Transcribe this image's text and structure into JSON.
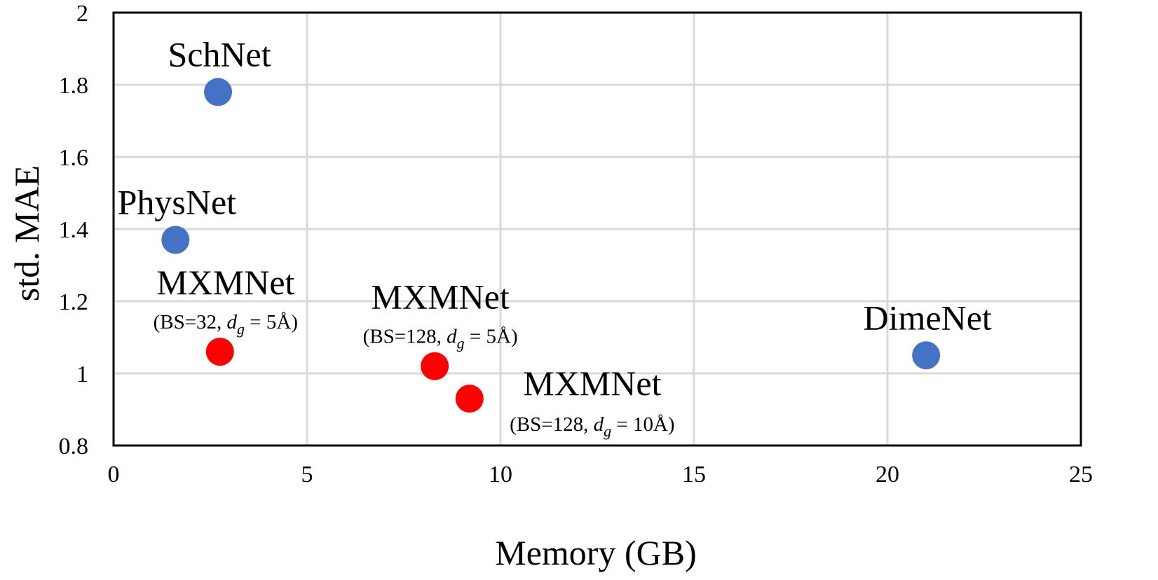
{
  "chart_data": {
    "type": "scatter",
    "xlabel": "Memory (GB)",
    "ylabel": "std. MAE",
    "xlim": [
      0,
      25
    ],
    "ylim": [
      0.8,
      2
    ],
    "xticks": [
      0,
      5,
      10,
      15,
      20,
      25
    ],
    "yticks": [
      0.8,
      1,
      1.2,
      1.4,
      1.6,
      1.8,
      2
    ],
    "xtick_labels": [
      "0",
      "5",
      "10",
      "15",
      "20",
      "25"
    ],
    "ytick_labels": [
      "0.8",
      "1",
      "1.2",
      "1.4",
      "1.6",
      "1.8",
      "2"
    ],
    "grid": true,
    "legend": "none",
    "colors": {
      "baseline": "#4472c4",
      "mxmnet": "#ff0000",
      "grid": "#d9d9d9",
      "frame": "#000000"
    },
    "points": [
      {
        "name": "SchNet",
        "x": 2.7,
        "y": 1.78,
        "group": "baseline",
        "label_position": "above"
      },
      {
        "name": "PhysNet",
        "x": 1.6,
        "y": 1.37,
        "group": "baseline",
        "label_position": "above"
      },
      {
        "name": "MXMNet",
        "x": 2.75,
        "y": 1.06,
        "group": "mxmnet",
        "label_position": "above",
        "sub": {
          "prefix": "(BS=32, ",
          "var": "d",
          "subscript": "g",
          "suffix": " = 5Å)"
        }
      },
      {
        "name": "MXMNet",
        "x": 8.3,
        "y": 1.02,
        "group": "mxmnet",
        "label_position": "above",
        "sub": {
          "prefix": "(BS=128, ",
          "var": "d",
          "subscript": "g",
          "suffix": " = 5Å)"
        }
      },
      {
        "name": "MXMNet",
        "x": 9.2,
        "y": 0.93,
        "group": "mxmnet",
        "label_position": "right",
        "sub": {
          "prefix": "(BS=128, ",
          "var": "d",
          "subscript": "g",
          "suffix": " = 10Å)"
        }
      },
      {
        "name": "DimeNet",
        "x": 21.0,
        "y": 1.05,
        "group": "baseline",
        "label_position": "above"
      }
    ]
  }
}
